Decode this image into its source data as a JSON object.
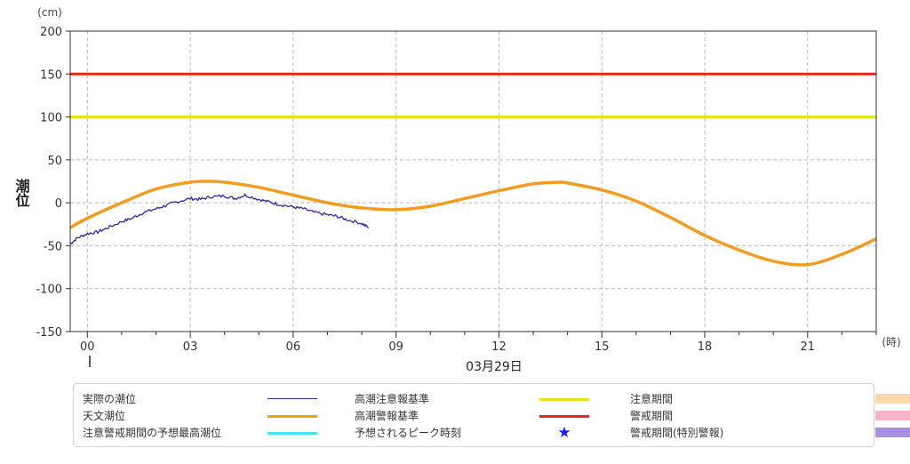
{
  "chart_data": {
    "type": "line",
    "y_unit": "(cm)",
    "x_unit": "(時)",
    "ylabel": "潮位",
    "date_label": "03月29日",
    "ylim": [
      -150,
      200
    ],
    "y_ticks": [
      200,
      150,
      100,
      50,
      0,
      -50,
      -100,
      -150
    ],
    "xlim": [
      -0.5,
      23
    ],
    "x_ticks": [
      "00",
      "03",
      "06",
      "09",
      "12",
      "15",
      "18",
      "21"
    ],
    "grid": true,
    "reference_lines": [
      {
        "name": "高潮警報基準",
        "value": 150,
        "color": "#e8261e"
      },
      {
        "name": "高潮注意報基準",
        "value": 100,
        "color": "#e8e00f"
      }
    ],
    "series": [
      {
        "name": "天文潮位",
        "color": "#f29d22",
        "x": [
          -0.5,
          0,
          1,
          2,
          3,
          3.5,
          4,
          5,
          6,
          7,
          8,
          9,
          10,
          11,
          12,
          13,
          13.8,
          14,
          15,
          16,
          17,
          18,
          19,
          20,
          21,
          22,
          23
        ],
        "y": [
          -29,
          -18,
          0,
          16,
          24,
          25,
          24,
          18,
          9,
          0,
          -6,
          -8,
          -4,
          5,
          14,
          22,
          24,
          23,
          15,
          2,
          -17,
          -38,
          -55,
          -68,
          -72,
          -60,
          -42
        ]
      },
      {
        "name": "実際の潮位",
        "color": "#3a22a6",
        "x": [
          -0.5,
          -0.3,
          0,
          0.3,
          0.6,
          1,
          1.3,
          1.6,
          2,
          2.3,
          2.6,
          3,
          3.3,
          3.6,
          4,
          4.3,
          4.6,
          5,
          5.3,
          5.6,
          6,
          6.3,
          6.6,
          7,
          7.3,
          7.6,
          8,
          8.2
        ],
        "y": [
          -48,
          -41,
          -36,
          -34,
          -29,
          -22,
          -18,
          -12,
          -7,
          -3,
          1,
          5,
          4,
          7,
          8,
          5,
          9,
          4,
          1,
          -2,
          -5,
          -7,
          -11,
          -14,
          -16,
          -20,
          -24,
          -29
        ]
      }
    ]
  },
  "legend": {
    "items": [
      {
        "label": "実際の潮位",
        "type": "line",
        "color": "#3a22a6",
        "width": 1.5
      },
      {
        "label": "高潮注意報基準",
        "type": "line",
        "color": "#e8e00f",
        "width": 3
      },
      {
        "label": "注意期間",
        "type": "box",
        "color": "#fad9a8"
      },
      {
        "label": "天文潮位",
        "type": "line",
        "color": "#f29d22",
        "width": 3
      },
      {
        "label": "高潮警報基準",
        "type": "line",
        "color": "#e8261e",
        "width": 3
      },
      {
        "label": "警戒期間",
        "type": "box",
        "color": "#f7b3c8"
      },
      {
        "label": "注意警戒期間の予想最高潮位",
        "type": "line",
        "color": "#3ee8ea",
        "width": 3
      },
      {
        "label": "予想されるピーク時刻",
        "type": "star",
        "color": "#1a1aff",
        "symbol": "★"
      },
      {
        "label": "警戒期間(特別警報)",
        "type": "box",
        "color": "#a98fe0"
      }
    ]
  }
}
